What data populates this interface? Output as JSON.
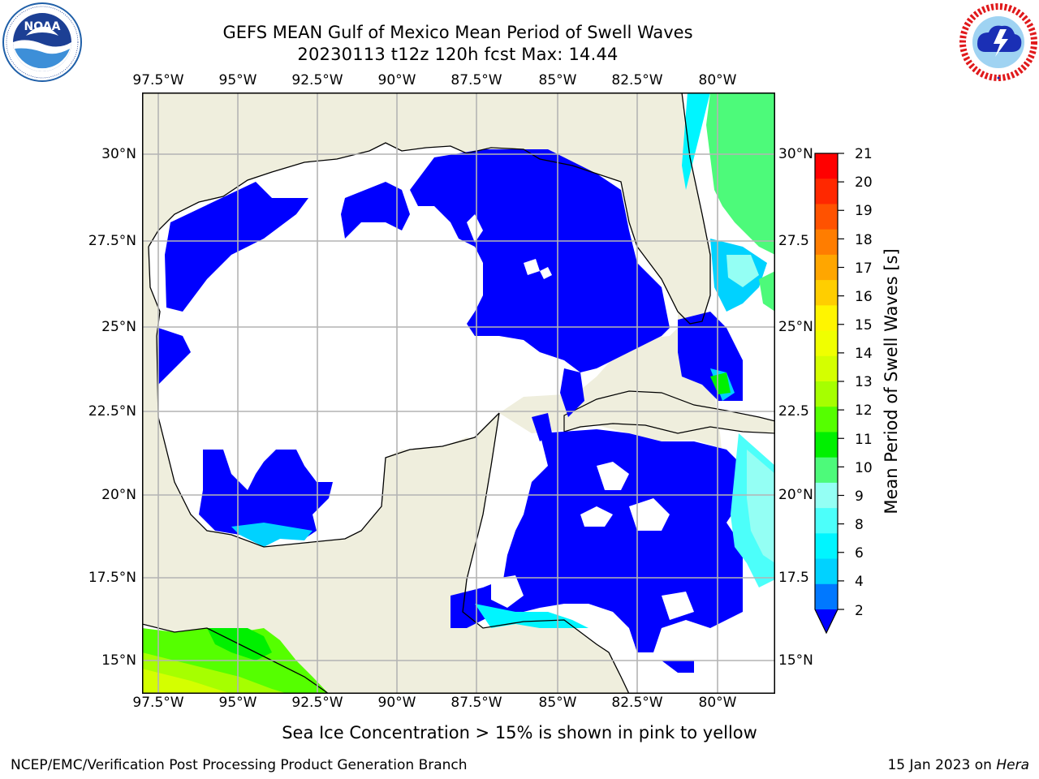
{
  "title": {
    "line1": "GEFS MEAN Gulf of Mexico Mean Period of Swell Waves",
    "line2": "20230113 t12z 120h fcst   Max: 14.44"
  },
  "logos": {
    "left": "noaa-logo",
    "right": "nws-logo"
  },
  "map": {
    "lon_ticks": [
      "97.5°W",
      "95°W",
      "92.5°W",
      "90°W",
      "87.5°W",
      "85°W",
      "82.5°W",
      "80°W"
    ],
    "lat_ticks_left": [
      "30°N",
      "27.5°N",
      "25°N",
      "22.5°N",
      "20°N",
      "17.5°N",
      "15°N"
    ],
    "lat_ticks_right": [
      "30°N",
      "27.5",
      "25°N",
      "22.5",
      "20°N",
      "17.5",
      "15°N"
    ],
    "colors": {
      "land": "#efeedd",
      "ocean_blank": "#ffffff",
      "coast": "#000000",
      "grid": "#b4b4b4"
    }
  },
  "colorbar": {
    "title": "Mean Period of Swell Waves [s]",
    "labels": [
      "21",
      "20",
      "19",
      "18",
      "17",
      "16",
      "15",
      "14",
      "13",
      "12",
      "11",
      "10",
      "9",
      "8",
      "6",
      "4",
      "2"
    ],
    "colors": [
      "#ff0000",
      "#ff2800",
      "#ff5200",
      "#ff7d00",
      "#ffa600",
      "#ffce00",
      "#fff500",
      "#f0ff00",
      "#d4ff00",
      "#a6ff00",
      "#55ff00",
      "#00f000",
      "#4dfa7a",
      "#94fff4",
      "#4cfffa",
      "#00f5ff",
      "#00d2ff",
      "#0078ff"
    ],
    "extend_color": "#0000ff"
  },
  "note": "Sea Ice Concentration > 15% is shown in pink to yellow",
  "footer": {
    "left": "NCEP/EMC/Verification Post Processing Product Generation Branch",
    "right_date": "15 Jan 2023 on",
    "right_host": "Hera"
  }
}
